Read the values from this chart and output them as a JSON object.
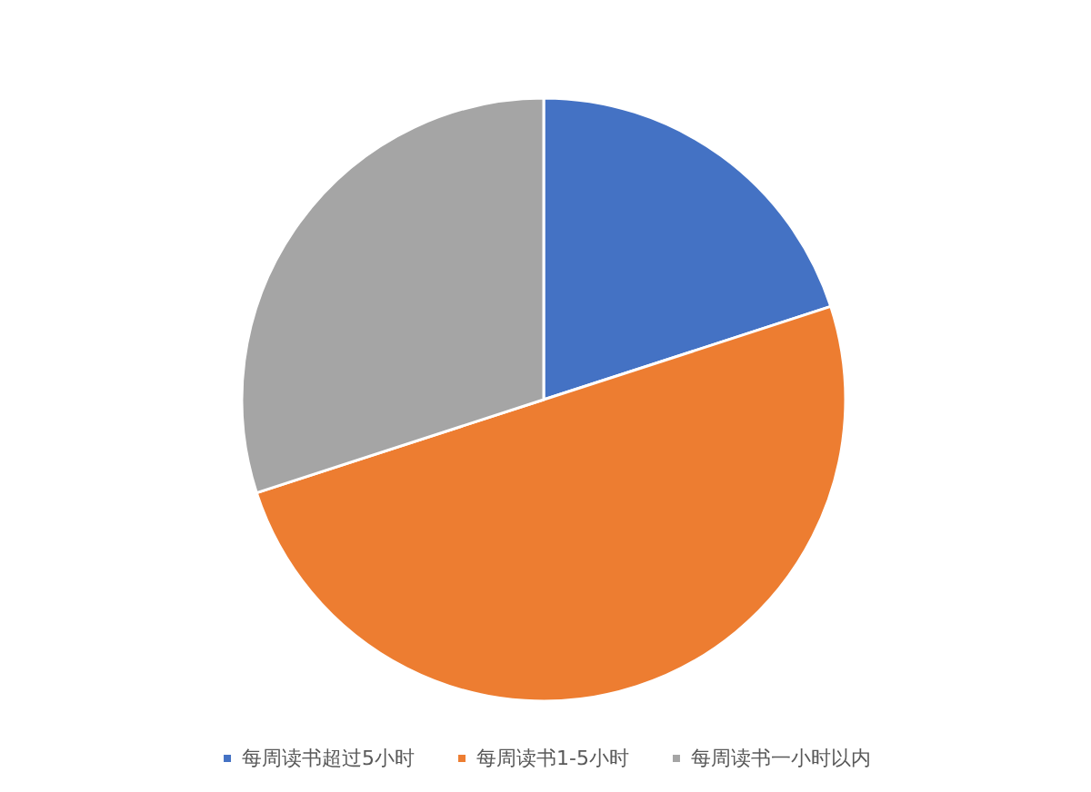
{
  "chart_data": {
    "type": "pie",
    "categories": [
      "每周读书超过5小时",
      "每周读书1-5小时",
      "每周读书一小时以内"
    ],
    "values": [
      20,
      50,
      30
    ],
    "colors": [
      "#4472c4",
      "#ed7d31",
      "#a5a5a5"
    ],
    "legend": "bottom"
  }
}
